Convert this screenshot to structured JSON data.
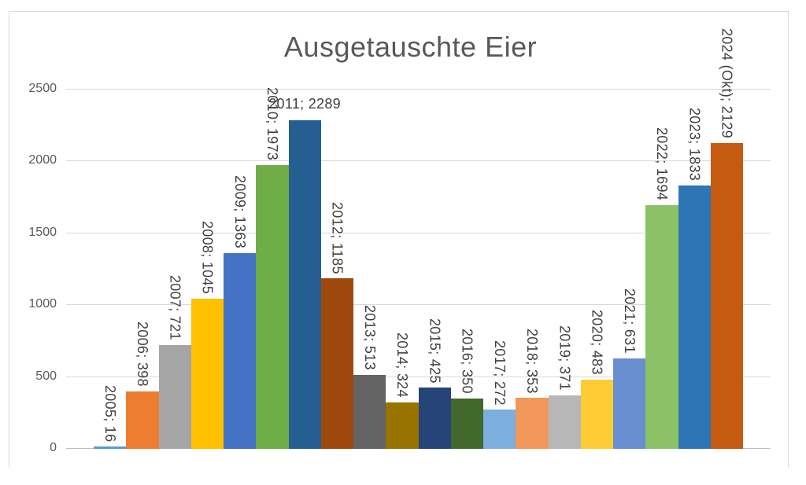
{
  "chart_data": {
    "type": "bar",
    "title": "Ausgetauschte Eier",
    "xlabel": "",
    "ylabel": "",
    "ylim": [
      0,
      2500
    ],
    "yticks": [
      0,
      500,
      1000,
      1500,
      2000,
      2500
    ],
    "grid": true,
    "legend": "none",
    "label_format": "category; value",
    "points": [
      {
        "category": "2005",
        "value": 16,
        "label": "2005; 16",
        "color": "#5B9BD5",
        "label_orientation": "vertical"
      },
      {
        "category": "2006",
        "value": 398,
        "label": "2006; 398",
        "color": "#ED7D31",
        "label_orientation": "vertical"
      },
      {
        "category": "2007",
        "value": 721,
        "label": "2007; 721",
        "color": "#A5A5A5",
        "label_orientation": "vertical"
      },
      {
        "category": "2008",
        "value": 1045,
        "label": "2008; 1045",
        "color": "#FFC000",
        "label_orientation": "vertical"
      },
      {
        "category": "2009",
        "value": 1363,
        "label": "2009; 1363",
        "color": "#4472C4",
        "label_orientation": "vertical"
      },
      {
        "category": "2010",
        "value": 1973,
        "label": "2010; 1973",
        "color": "#70AD47",
        "label_orientation": "vertical"
      },
      {
        "category": "2011",
        "value": 2289,
        "label": "2011; 2289",
        "color": "#255E91",
        "label_orientation": "horizontal"
      },
      {
        "category": "2012",
        "value": 1185,
        "label": "2012; 1185",
        "color": "#9E480E",
        "label_orientation": "vertical"
      },
      {
        "category": "2013",
        "value": 513,
        "label": "2013; 513",
        "color": "#636363",
        "label_orientation": "vertical"
      },
      {
        "category": "2014",
        "value": 324,
        "label": "2014; 324",
        "color": "#997300",
        "label_orientation": "vertical"
      },
      {
        "category": "2015",
        "value": 425,
        "label": "2015; 425",
        "color": "#264478",
        "label_orientation": "vertical"
      },
      {
        "category": "2016",
        "value": 350,
        "label": "2016; 350",
        "color": "#43682B",
        "label_orientation": "vertical"
      },
      {
        "category": "2017",
        "value": 272,
        "label": "2017; 272",
        "color": "#7CAFDD",
        "label_orientation": "vertical"
      },
      {
        "category": "2018",
        "value": 353,
        "label": "2018; 353",
        "color": "#F1975A",
        "label_orientation": "vertical"
      },
      {
        "category": "2019",
        "value": 371,
        "label": "2019; 371",
        "color": "#B7B7B7",
        "label_orientation": "vertical"
      },
      {
        "category": "2020",
        "value": 483,
        "label": "2020; 483",
        "color": "#FFCD33",
        "label_orientation": "vertical"
      },
      {
        "category": "2021",
        "value": 631,
        "label": "2021; 631",
        "color": "#698ED0",
        "label_orientation": "vertical"
      },
      {
        "category": "2022",
        "value": 1694,
        "label": "2022; 1694",
        "color": "#8CC168",
        "label_orientation": "vertical"
      },
      {
        "category": "2023",
        "value": 1833,
        "label": "2023; 1833",
        "color": "#2E75B6",
        "label_orientation": "vertical"
      },
      {
        "category": "2024 (Okt)",
        "value": 2129,
        "label": "2024 (Okt); 2129",
        "color": "#C55A11",
        "label_orientation": "vertical"
      }
    ]
  },
  "colors": {
    "title_text": "#595959",
    "tick_text": "#595959",
    "data_label_text": "#404040",
    "gridline": "#D9D9D9",
    "axis_line": "#BFBFBF",
    "frame_border": "#D9D9D9",
    "background": "#FFFFFF"
  }
}
